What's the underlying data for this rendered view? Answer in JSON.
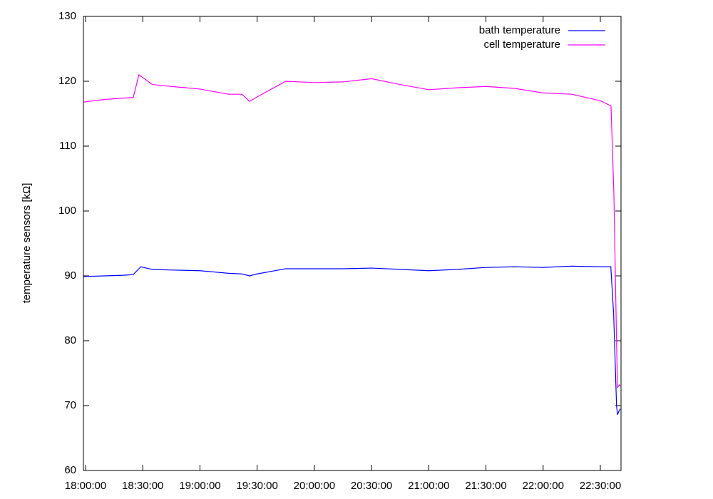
{
  "chart_data": {
    "type": "line",
    "y_label": "temperature sensors [kΩ]",
    "xlim": [
      "17:58:53",
      "22:40:51"
    ],
    "xticks": [
      "18:00:00",
      "18:30:00",
      "19:00:00",
      "19:30:00",
      "20:00:00",
      "20:30:00",
      "21:00:00",
      "21:30:00",
      "22:00:00",
      "22:30:00"
    ],
    "ylim": [
      60,
      130
    ],
    "yticks": [
      60,
      70,
      80,
      90,
      100,
      110,
      120,
      130
    ],
    "legend": "top-right",
    "series": [
      {
        "name": "bath temperature",
        "color": "#0000ff",
        "x": [
          "17:59:00",
          "18:10:00",
          "18:20:00",
          "18:25:00",
          "18:29:00",
          "18:35:00",
          "18:45:00",
          "19:00:00",
          "19:15:00",
          "19:22:00",
          "19:26:00",
          "19:30:00",
          "19:45:00",
          "20:00:00",
          "20:15:00",
          "20:30:00",
          "20:45:00",
          "21:00:00",
          "21:15:00",
          "21:30:00",
          "21:45:00",
          "22:00:00",
          "22:15:00",
          "22:30:00",
          "22:35:30",
          "22:37:00",
          "22:38:30",
          "22:39:00",
          "22:40:00",
          "22:40:30"
        ],
        "values": [
          89.9,
          90.0,
          90.1,
          90.2,
          91.4,
          91.0,
          90.9,
          90.8,
          90.4,
          90.3,
          90.0,
          90.3,
          91.1,
          91.1,
          91.1,
          91.2,
          91.0,
          90.8,
          91.0,
          91.3,
          91.4,
          91.3,
          91.5,
          91.4,
          91.4,
          84.0,
          70.0,
          68.6,
          69.3,
          69.5
        ]
      },
      {
        "name": "cell temperature",
        "color": "#ff00ff",
        "x": [
          "17:59:00",
          "18:10:00",
          "18:20:00",
          "18:25:00",
          "18:28:00",
          "18:35:00",
          "18:45:00",
          "19:00:00",
          "19:15:00",
          "19:22:00",
          "19:26:00",
          "19:30:00",
          "19:45:00",
          "20:00:00",
          "20:15:00",
          "20:30:00",
          "20:45:00",
          "21:00:00",
          "21:15:00",
          "21:30:00",
          "21:45:00",
          "22:00:00",
          "22:15:00",
          "22:30:00",
          "22:35:36",
          "22:37:07",
          "22:38:30",
          "22:39:00",
          "22:40:00",
          "22:40:30"
        ],
        "values": [
          116.8,
          117.2,
          117.4,
          117.5,
          121.0,
          119.5,
          119.2,
          118.8,
          118.0,
          118.0,
          116.9,
          117.6,
          120.0,
          119.8,
          119.9,
          120.4,
          119.5,
          118.7,
          119.0,
          119.2,
          118.9,
          118.2,
          118.0,
          117.0,
          116.2,
          102.5,
          80.0,
          72.8,
          73.2,
          73.0
        ]
      }
    ]
  }
}
